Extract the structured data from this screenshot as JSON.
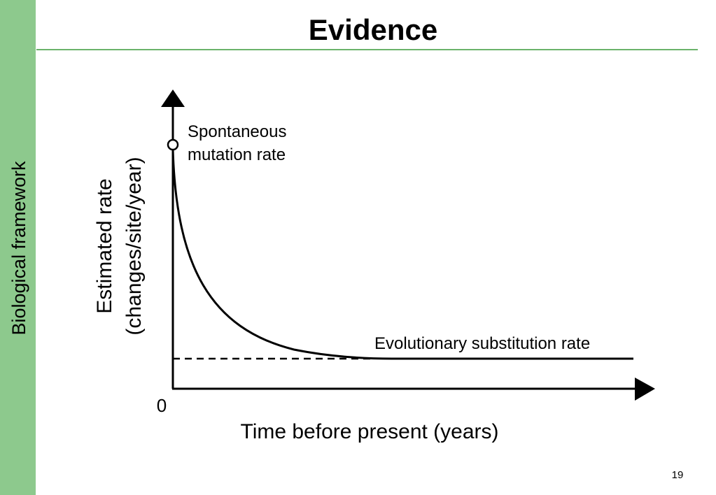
{
  "sidebar": {
    "label": "Biological framework"
  },
  "header": {
    "title": "Evidence"
  },
  "diagram": {
    "y_axis_label": [
      "Estimated rate",
      "(changes/site/year)"
    ],
    "x_axis_label": "Time before present (years)",
    "origin_label": "0",
    "start_annotation": [
      "Spontaneous",
      "mutation rate"
    ],
    "end_annotation": "Evolutionary substitution rate"
  },
  "footer": {
    "page_number": "19"
  }
}
